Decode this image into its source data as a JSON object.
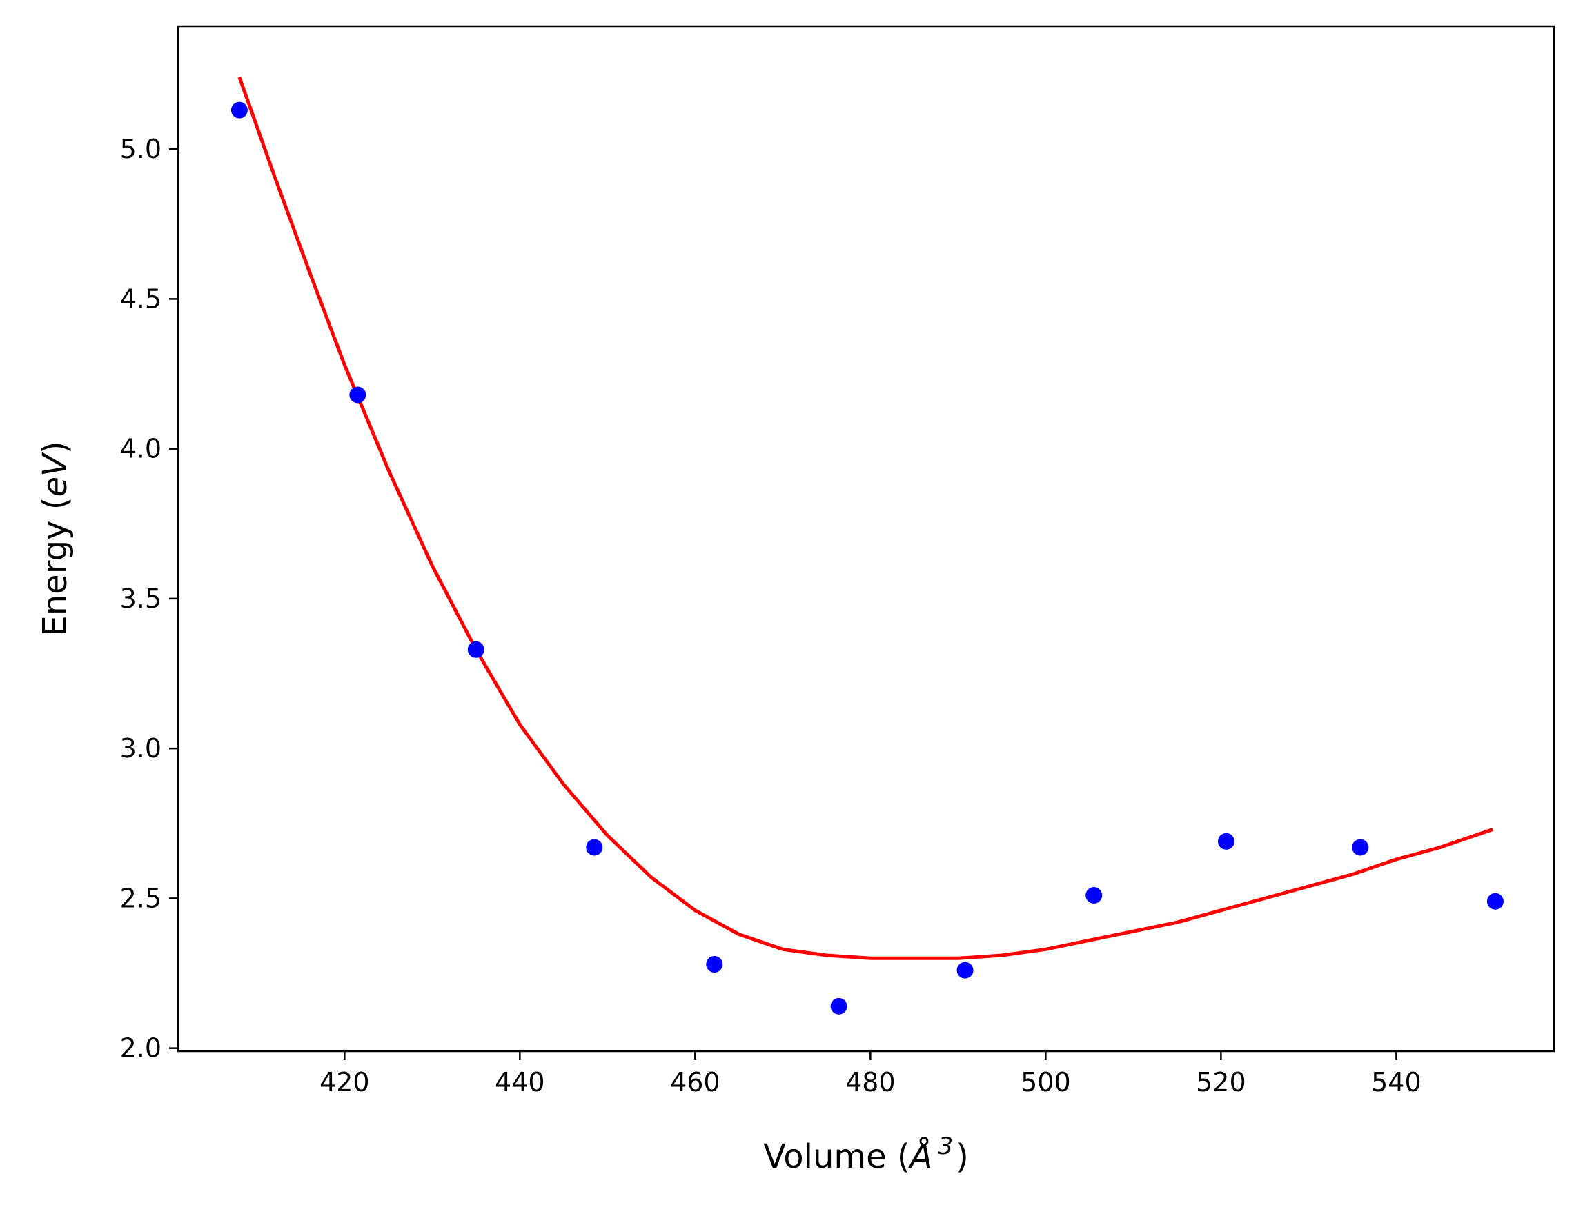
{
  "chart_data": {
    "type": "scatter",
    "xlabel": {
      "prefix": "Volume (",
      "symbol": "Å",
      "superscript": "3",
      "suffix": ")"
    },
    "ylabel": {
      "prefix": "Energy (",
      "unit": "eV",
      "suffix": ")"
    },
    "xlim": [
      401,
      558
    ],
    "ylim": [
      1.99,
      5.41
    ],
    "x_ticks": [
      420,
      440,
      460,
      480,
      500,
      520,
      540
    ],
    "x_tick_labels": [
      "420",
      "440",
      "460",
      "480",
      "500",
      "520",
      "540"
    ],
    "y_ticks": [
      2.0,
      2.5,
      3.0,
      3.5,
      4.0,
      4.5,
      5.0
    ],
    "y_tick_labels": [
      "2.0",
      "2.5",
      "3.0",
      "3.5",
      "4.0",
      "4.5",
      "5.0"
    ],
    "grid": false,
    "legend": "none",
    "series": [
      {
        "kind": "points",
        "color": "#0000ff",
        "x": [
          408.0,
          421.5,
          435.0,
          448.5,
          462.2,
          476.4,
          490.8,
          505.5,
          520.6,
          535.9,
          551.3
        ],
        "y": [
          5.13,
          4.18,
          3.33,
          2.67,
          2.28,
          2.14,
          2.26,
          2.51,
          2.69,
          2.67,
          2.49
        ]
      },
      {
        "kind": "fit-line",
        "color": "#ff0000",
        "x": [
          408.0,
          412.0,
          416.0,
          420.0,
          425.0,
          430.0,
          435.0,
          440.0,
          445.0,
          450.0,
          455.0,
          460.0,
          465.0,
          470.0,
          475.0,
          480.0,
          485.0,
          490.0,
          495.0,
          500.0,
          505.0,
          510.0,
          515.0,
          520.0,
          525.0,
          530.0,
          535.0,
          540.0,
          545.0,
          551.0
        ],
        "y": [
          5.24,
          4.91,
          4.59,
          4.28,
          3.93,
          3.61,
          3.33,
          3.08,
          2.88,
          2.71,
          2.57,
          2.46,
          2.38,
          2.33,
          2.31,
          2.3,
          2.3,
          2.3,
          2.31,
          2.33,
          2.36,
          2.39,
          2.42,
          2.46,
          2.5,
          2.54,
          2.58,
          2.63,
          2.67,
          2.73
        ]
      }
    ]
  }
}
